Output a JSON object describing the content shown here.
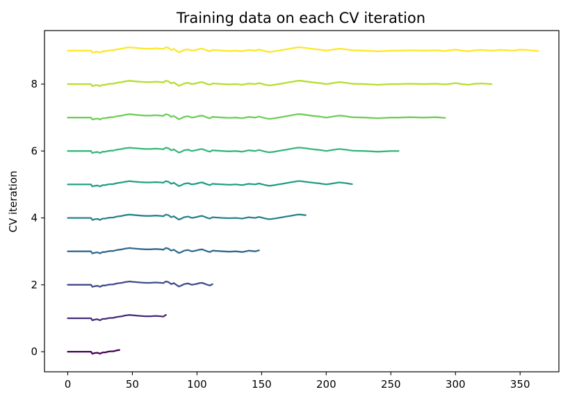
{
  "chart_data": {
    "type": "line",
    "title": "Training data on each CV iteration",
    "xlabel": "",
    "ylabel": "CV iteration",
    "xlim": [
      -18,
      380
    ],
    "ylim": [
      -0.6,
      9.6
    ],
    "xticks": [
      0,
      50,
      100,
      150,
      200,
      250,
      300,
      350
    ],
    "yticks": [
      0,
      2,
      4,
      6,
      8
    ],
    "grid": false,
    "legend": "none",
    "series": [
      {
        "iteration": 0,
        "x_end": 40,
        "color": "#440154"
      },
      {
        "iteration": 1,
        "x_end": 76,
        "color": "#482878"
      },
      {
        "iteration": 2,
        "x_end": 112,
        "color": "#3e4a89"
      },
      {
        "iteration": 3,
        "x_end": 148,
        "color": "#31688e"
      },
      {
        "iteration": 4,
        "x_end": 184,
        "color": "#26828e"
      },
      {
        "iteration": 5,
        "x_end": 220,
        "color": "#1f9e89"
      },
      {
        "iteration": 6,
        "x_end": 256,
        "color": "#35b779"
      },
      {
        "iteration": 7,
        "x_end": 292,
        "color": "#6ece58"
      },
      {
        "iteration": 8,
        "x_end": 328,
        "color": "#b5de2b"
      },
      {
        "iteration": 9,
        "x_end": 364,
        "color": "#fde725"
      }
    ],
    "signal": {
      "x": [
        0,
        18,
        19,
        20,
        21,
        23,
        25,
        27,
        29,
        31,
        33,
        35,
        37,
        38,
        40,
        42,
        44,
        46,
        48,
        50,
        53,
        56,
        60,
        64,
        68,
        72,
        74,
        75,
        76,
        77,
        78,
        80,
        82,
        84,
        86,
        88,
        90,
        93,
        96,
        99,
        102,
        104,
        106,
        108,
        110,
        112,
        116,
        120,
        125,
        130,
        135,
        140,
        145,
        148,
        150,
        153,
        156,
        160,
        163,
        166,
        169,
        172,
        175,
        178,
        180,
        182,
        184,
        190,
        195,
        200,
        205,
        210,
        215,
        220,
        230,
        240,
        250,
        256,
        265,
        275,
        285,
        292,
        300,
        305,
        310,
        315,
        320,
        328,
        335,
        340,
        345,
        350,
        355,
        360,
        364
      ],
      "y": [
        0,
        0,
        -0.06,
        -0.05,
        -0.04,
        -0.03,
        -0.06,
        -0.02,
        -0.02,
        0.0,
        0.01,
        0.01,
        0.03,
        0.04,
        0.05,
        0.06,
        0.08,
        0.09,
        0.1,
        0.09,
        0.08,
        0.07,
        0.06,
        0.06,
        0.07,
        0.06,
        0.05,
        0.08,
        0.1,
        0.09,
        0.08,
        0.02,
        0.05,
        0.0,
        -0.05,
        -0.02,
        0.02,
        0.04,
        0.0,
        0.02,
        0.05,
        0.06,
        0.03,
        0.0,
        -0.02,
        0.02,
        0.01,
        0.0,
        -0.01,
        0.0,
        -0.02,
        0.02,
        0.0,
        0.03,
        0.01,
        -0.02,
        -0.04,
        -0.02,
        0.0,
        0.02,
        0.04,
        0.06,
        0.08,
        0.1,
        0.1,
        0.09,
        0.08,
        0.05,
        0.03,
        0.0,
        0.03,
        0.06,
        0.04,
        0.01,
        0.0,
        -0.02,
        0.0,
        0.0,
        0.01,
        0.0,
        0.01,
        -0.01,
        0.03,
        0.0,
        -0.02,
        0.01,
        0.02,
        0.0,
        0.02,
        0.01,
        0.0,
        0.03,
        0.02,
        0.0,
        -0.01
      ]
    }
  }
}
